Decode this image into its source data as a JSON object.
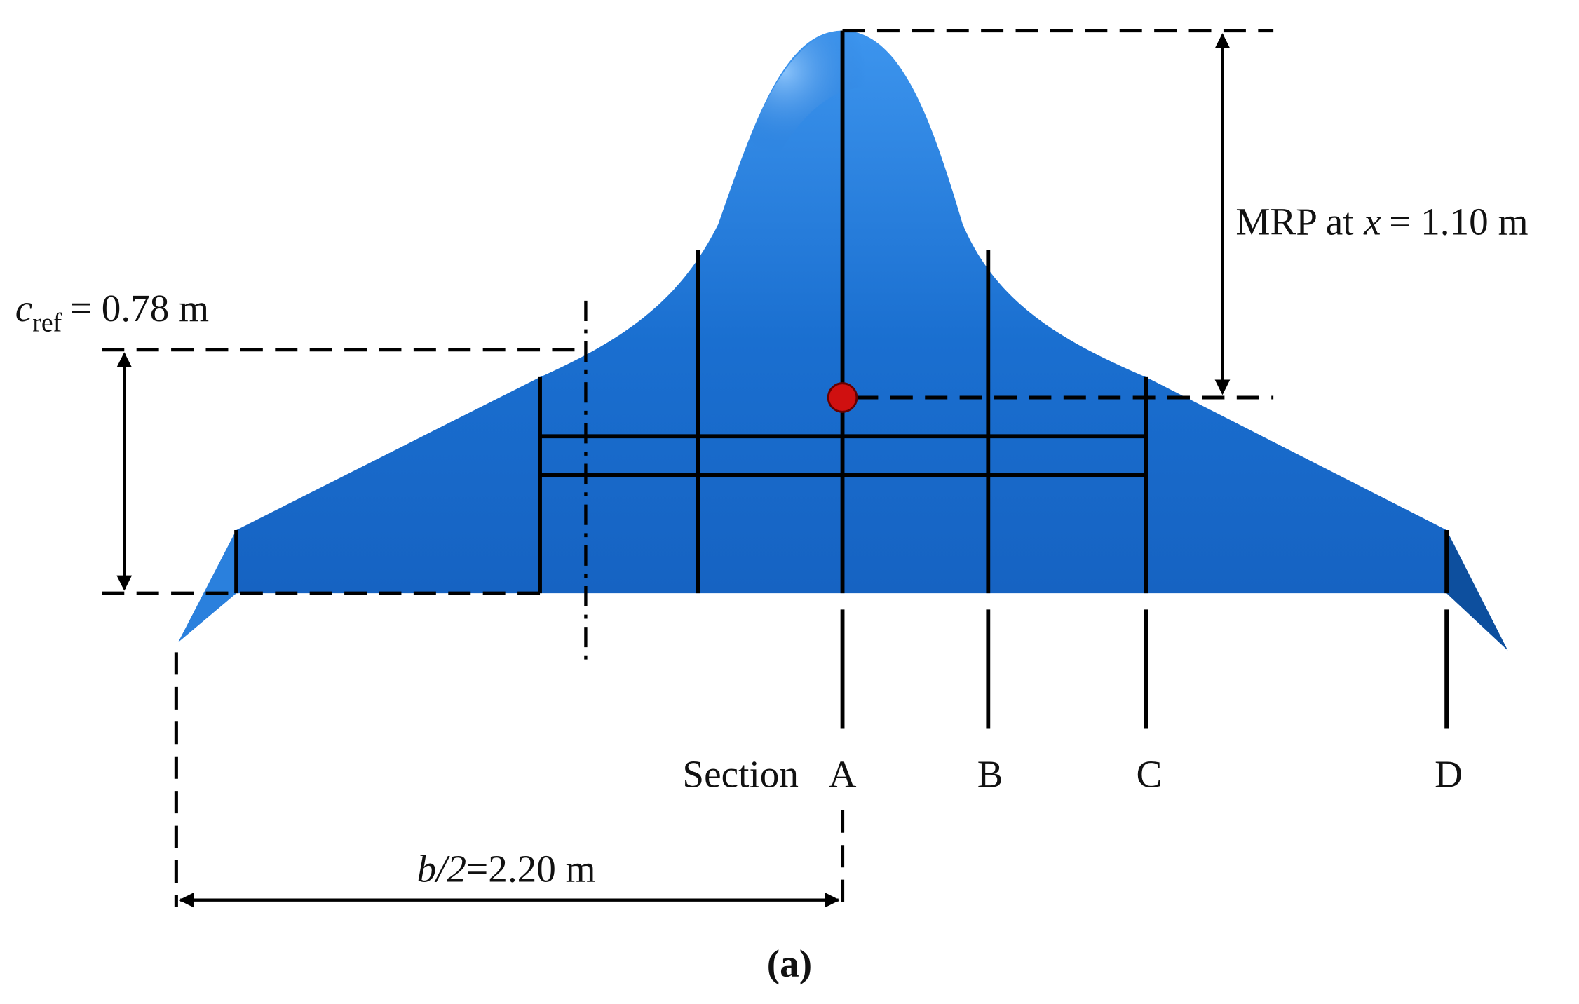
{
  "labels": {
    "c_ref": {
      "symbol": "c",
      "subscript": "ref",
      "value": "= 0.78 m"
    },
    "mrp": {
      "prefix": "MRP at",
      "variable": "x",
      "value": "= 1.10 m"
    },
    "span": {
      "symbol": "b/2",
      "value": "=2.20 m"
    },
    "sections": {
      "title": "Section",
      "names": [
        "A",
        "B",
        "C",
        "D"
      ]
    },
    "caption": "(a)"
  }
}
